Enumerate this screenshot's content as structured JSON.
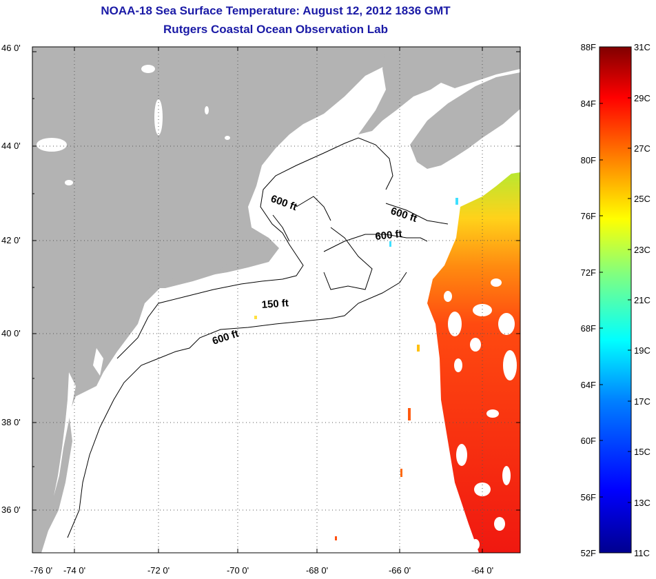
{
  "header": {
    "title": "NOAA-18 Sea Surface Temperature:  August 12, 2012 1836 GMT",
    "subtitle": "Rutgers Coastal Ocean Observation Lab"
  },
  "map": {
    "lat_labels": [
      "46 0'",
      "44 0'",
      "42 0'",
      "40 0'",
      "38 0'",
      "36 0'"
    ],
    "lon_labels": [
      "-76 0'",
      "-74 0'",
      "-72 0'",
      "-70 0'",
      "-68 0'",
      "-66 0'",
      "-64 0'"
    ],
    "depth_labels": [
      "600 ft",
      "600 ft",
      "600 ft",
      "150 ft",
      "600 ft"
    ],
    "colors": {
      "land": "#b3b3b3",
      "water": "#ffffff",
      "frame": "#000000"
    }
  },
  "colorbar": {
    "fahrenheit_labels": [
      "88F",
      "84F",
      "80F",
      "76F",
      "72F",
      "68F",
      "64F",
      "60F",
      "56F",
      "52F"
    ],
    "celsius_labels": [
      "31C",
      "29C",
      "27C",
      "25C",
      "23C",
      "21C",
      "19C",
      "17C",
      "15C",
      "13C",
      "11C"
    ],
    "colors": [
      "#00008f",
      "#0000ff",
      "#0080ff",
      "#00ffff",
      "#80ff80",
      "#ffff00",
      "#ff8000",
      "#ff0000",
      "#800000"
    ]
  }
}
